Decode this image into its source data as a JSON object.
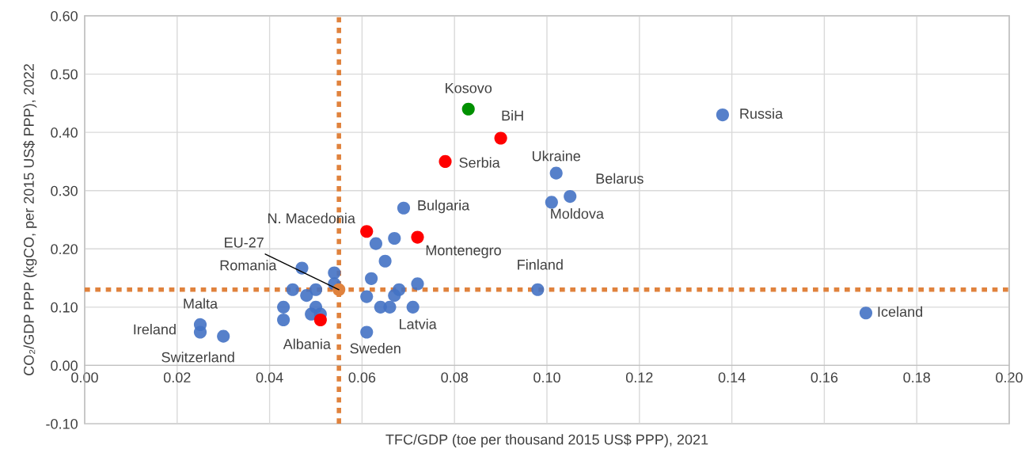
{
  "chart_data": {
    "type": "scatter",
    "xlabel": "TFC/GDP (toe per thousand 2015 US$ PPP), 2021",
    "ylabel": "CO₂/GDP PPP (kgCO, per 2015 US$ PPP), 2022",
    "xlim": [
      0,
      0.2
    ],
    "xticks": [
      {
        "value": 0,
        "label": "0.00"
      },
      {
        "value": 0.02,
        "label": "0.02"
      },
      {
        "value": 0.04,
        "label": "0.04"
      },
      {
        "value": 0.06,
        "label": "0.06"
      },
      {
        "value": 0.08,
        "label": "0.08"
      },
      {
        "value": 0.1,
        "label": "0.10"
      },
      {
        "value": 0.12,
        "label": "0.12"
      },
      {
        "value": 0.14,
        "label": "0.14"
      },
      {
        "value": 0.16,
        "label": "0.16"
      },
      {
        "value": 0.18,
        "label": "0.18"
      },
      {
        "value": 0.2,
        "label": "0.20"
      }
    ],
    "ylim": [
      -0.1,
      0.6
    ],
    "yticks": [
      {
        "value": -0.1,
        "label": "-0.10"
      },
      {
        "value": 0,
        "label": "0.00"
      },
      {
        "value": 0.1,
        "label": "0.10"
      },
      {
        "value": 0.2,
        "label": "0.20"
      },
      {
        "value": 0.3,
        "label": "0.30"
      },
      {
        "value": 0.4,
        "label": "0.40"
      },
      {
        "value": 0.5,
        "label": "0.50"
      },
      {
        "value": 0.6,
        "label": "0.60"
      }
    ],
    "grid": true,
    "marker": "circle",
    "series": [
      {
        "color": "#4472c4",
        "x": [
          0.138,
          0.169,
          0.102,
          0.105,
          0.101,
          0.069,
          0.098,
          0.025,
          0.025,
          0.03,
          0.061,
          0.047,
          0.054,
          0.054,
          0.045,
          0.05,
          0.048,
          0.043,
          0.043,
          0.05,
          0.049,
          0.051,
          0.063,
          0.067,
          0.065,
          0.062,
          0.061,
          0.068,
          0.067,
          0.072,
          0.064,
          0.066,
          0.071
        ],
        "values": [
          0.43,
          0.09,
          0.33,
          0.29,
          0.28,
          0.27,
          0.13,
          0.07,
          0.057,
          0.05,
          0.057,
          0.167,
          0.159,
          0.14,
          0.13,
          0.13,
          0.12,
          0.1,
          0.078,
          0.1,
          0.088,
          0.088,
          0.209,
          0.218,
          0.179,
          0.149,
          0.118,
          0.13,
          0.12,
          0.14,
          0.1,
          0.1,
          0.1
        ]
      },
      {
        "color": "#ff0000",
        "x": [
          0.078,
          0.09,
          0.061,
          0.072,
          0.051
        ],
        "values": [
          0.35,
          0.39,
          0.23,
          0.22,
          0.078
        ]
      },
      {
        "color": "#009000",
        "x": [
          0.083
        ],
        "values": [
          0.44
        ]
      },
      {
        "color": "#e0823d",
        "x": [
          0.055
        ],
        "values": [
          0.13
        ]
      }
    ],
    "ref_lines": [
      {
        "axis": "x",
        "value": 0.055,
        "color": "#e0823d",
        "line_style": "dotted"
      },
      {
        "axis": "y",
        "value": 0.13,
        "color": "#e0823d",
        "line_style": "dotted"
      }
    ],
    "annotations": [
      {
        "text": "Russia",
        "x": 0.138,
        "y": 0.43
      },
      {
        "text": "Iceland",
        "x": 0.169,
        "y": 0.09
      },
      {
        "text": "Kosovo",
        "x": 0.083,
        "y": 0.44
      },
      {
        "text": "BiH",
        "x": 0.09,
        "y": 0.39
      },
      {
        "text": "Serbia",
        "x": 0.078,
        "y": 0.35
      },
      {
        "text": "Ukraine",
        "x": 0.102,
        "y": 0.33
      },
      {
        "text": "Belarus",
        "x": 0.105,
        "y": 0.29
      },
      {
        "text": "Moldova",
        "x": 0.101,
        "y": 0.28
      },
      {
        "text": "Bulgaria",
        "x": 0.069,
        "y": 0.27
      },
      {
        "text": "N. Macedonia",
        "x": 0.061,
        "y": 0.23
      },
      {
        "text": "Montenegro",
        "x": 0.072,
        "y": 0.22
      },
      {
        "text": "Finland",
        "x": 0.098,
        "y": 0.13
      },
      {
        "text": "Romania",
        "x": 0.047,
        "y": 0.167
      },
      {
        "text": "Latvia",
        "x": 0.071,
        "y": 0.1
      },
      {
        "text": "Sweden",
        "x": 0.061,
        "y": 0.057
      },
      {
        "text": "Albania",
        "x": 0.051,
        "y": 0.078
      },
      {
        "text": "Malta",
        "x": 0.025,
        "y": 0.07
      },
      {
        "text": "Ireland",
        "x": 0.025,
        "y": 0.057
      },
      {
        "text": "Switzerland",
        "x": 0.03,
        "y": 0.05
      },
      {
        "text": "EU-27",
        "x": 0.055,
        "y": 0.13
      }
    ]
  }
}
